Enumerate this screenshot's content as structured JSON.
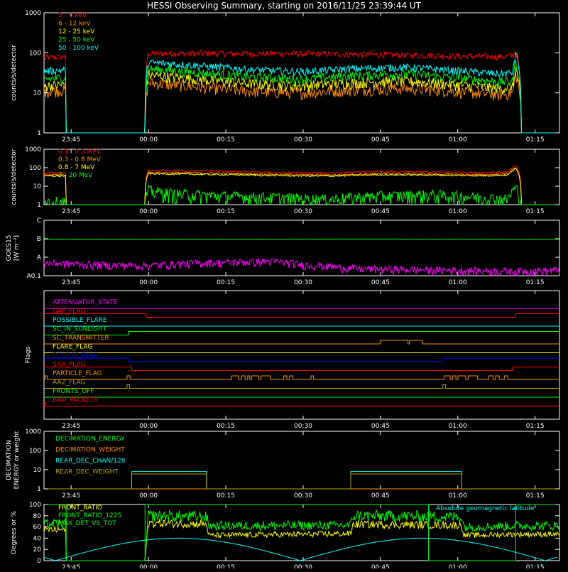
{
  "title": "HESSI Observing Summary, starting on 2016/11/25 23:39:44 UT",
  "colors": {
    "red": "#ff0000",
    "orange": "#ff8c00",
    "yellow": "#ffff00",
    "green": "#00ff00",
    "cyan": "#00ffff",
    "magenta": "#ff00ff",
    "blue": "#0000ff",
    "olive": "#b8a000",
    "white": "#ffffff"
  },
  "time_axis": {
    "start": "23:39:44",
    "end_min": 100,
    "ticks": [
      {
        "min": 5.27,
        "label": "23:45"
      },
      {
        "min": 20.27,
        "label": "00:00"
      },
      {
        "min": 35.27,
        "label": "00:15"
      },
      {
        "min": 50.27,
        "label": "00:30"
      },
      {
        "min": 65.27,
        "label": "00:45"
      },
      {
        "min": 80.27,
        "label": "01:00"
      },
      {
        "min": 95.27,
        "label": "01:15"
      }
    ]
  },
  "chart_data": [
    {
      "id": "hxr",
      "type": "line",
      "ylabel": "counts/s/detector",
      "yscale": "log",
      "ylim": [
        1,
        1000
      ],
      "yticks": [
        {
          "v": 1,
          "label": "1"
        },
        {
          "v": 10,
          "label": "10"
        },
        {
          "v": 100,
          "label": "100"
        },
        {
          "v": 1000,
          "label": "1000"
        }
      ],
      "series": [
        {
          "name": "3 - 6 keV",
          "color": "red",
          "noise": 0.08,
          "x": [
            0,
            4.2,
            4.3,
            19.6,
            20.2,
            30,
            50,
            60,
            70,
            80,
            88,
            91,
            91.5,
            92.6
          ],
          "y": [
            75,
            80,
            1,
            1,
            95,
            97,
            95,
            92,
            88,
            83,
            80,
            85,
            110,
            1
          ]
        },
        {
          "name": "6 - 12 keV",
          "color": "orange",
          "noise": 0.15,
          "x": [
            0,
            4.2,
            4.3,
            19.6,
            20.2,
            30,
            40,
            50,
            60,
            70,
            80,
            88,
            91,
            91.5,
            92.6
          ],
          "y": [
            11,
            12,
            1,
            1,
            18,
            14,
            11,
            10,
            12,
            13,
            11,
            9,
            10,
            30,
            1
          ]
        },
        {
          "name": "12 - 25 keV",
          "color": "yellow",
          "noise": 0.14,
          "x": [
            0,
            4.2,
            4.3,
            19.6,
            20.2,
            30,
            40,
            50,
            60,
            70,
            80,
            88,
            91,
            91.5,
            92.6
          ],
          "y": [
            15,
            16,
            1,
            1,
            28,
            22,
            17,
            15,
            18,
            20,
            16,
            13,
            14,
            40,
            1
          ]
        },
        {
          "name": "25 - 50 keV",
          "color": "green",
          "noise": 0.12,
          "x": [
            0,
            4.2,
            4.3,
            19.6,
            20.2,
            30,
            40,
            50,
            60,
            70,
            80,
            88,
            91,
            91.5,
            92.6
          ],
          "y": [
            22,
            24,
            1,
            1,
            40,
            32,
            25,
            22,
            27,
            30,
            24,
            19,
            20,
            60,
            1
          ]
        },
        {
          "name": "50 - 100 keV",
          "color": "cyan",
          "noise": 0.1,
          "x": [
            0,
            4.2,
            4.3,
            19.6,
            20.2,
            30,
            40,
            50,
            60,
            70,
            80,
            88,
            91,
            91.5,
            92.6
          ],
          "y": [
            35,
            38,
            1,
            1,
            58,
            48,
            38,
            34,
            40,
            44,
            36,
            30,
            32,
            100,
            1
          ]
        }
      ]
    },
    {
      "id": "gamma",
      "type": "line",
      "ylabel": "counts/s/detector",
      "yscale": "log",
      "ylim": [
        1,
        1000
      ],
      "yticks": [
        {
          "v": 1,
          "label": "1"
        },
        {
          "v": 10,
          "label": "10"
        },
        {
          "v": 100,
          "label": "100"
        },
        {
          "v": 1000,
          "label": "1000"
        }
      ],
      "series": [
        {
          "name": "0.1 - 0.3 MeV",
          "color": "red",
          "noise": 0.05,
          "x": [
            0,
            4.2,
            4.3,
            19.6,
            20.2,
            30,
            45,
            55,
            65,
            75,
            85,
            90,
            91.5,
            92.6
          ],
          "y": [
            50,
            52,
            1,
            1,
            70,
            68,
            55,
            52,
            62,
            58,
            55,
            60,
            130,
            1
          ]
        },
        {
          "name": "0.3 - 0.8 MeV",
          "color": "orange",
          "noise": 0.05,
          "x": [
            0,
            4.2,
            4.3,
            19.6,
            20.2,
            30,
            45,
            55,
            65,
            75,
            85,
            90,
            91.5,
            92.6
          ],
          "y": [
            40,
            42,
            1,
            1,
            55,
            52,
            44,
            40,
            48,
            45,
            42,
            46,
            100,
            1
          ]
        },
        {
          "name": "0.8 - 7 MeV",
          "color": "yellow",
          "noise": 0.05,
          "x": [
            0,
            4.2,
            4.3,
            19.6,
            20.2,
            30,
            45,
            55,
            65,
            75,
            85,
            90,
            91.5,
            92.6
          ],
          "y": [
            35,
            36,
            1,
            1,
            48,
            44,
            38,
            35,
            42,
            40,
            37,
            40,
            90,
            1
          ]
        },
        {
          "name": "7 - 20 MeV",
          "color": "green",
          "noise": 0.35,
          "x": [
            0,
            4.2,
            4.3,
            19.6,
            20.2,
            25,
            35,
            45,
            55,
            65,
            75,
            85,
            90,
            91.5,
            92.6
          ],
          "y": [
            1.5,
            1.5,
            1,
            1,
            6,
            4,
            3,
            2.5,
            2,
            3,
            3.5,
            2.5,
            2,
            8,
            1
          ]
        }
      ]
    },
    {
      "id": "goes",
      "type": "line",
      "ylabel": "GOES15",
      "ylabel2": "[W m⁻²]",
      "yscale": "log",
      "ylim": [
        1e-08,
        1e-05
      ],
      "yticks": [
        {
          "v": 1e-08,
          "label": "A0.1"
        },
        {
          "v": 1e-07,
          "label": "A"
        },
        {
          "v": 1e-06,
          "label": "B"
        },
        {
          "v": 1e-05,
          "label": "C"
        }
      ],
      "series": [
        {
          "name": "",
          "color": "green",
          "noise": 0.01,
          "x": [
            0,
            30,
            60,
            100
          ],
          "y": [
            9.5e-07,
            9.3e-07,
            9.6e-07,
            9.4e-07
          ]
        },
        {
          "name": "",
          "color": "magenta",
          "noise": 0.22,
          "x": [
            0,
            10,
            20,
            30,
            45,
            50,
            60,
            70,
            80,
            90,
            100
          ],
          "y": [
            5e-08,
            4e-08,
            3.5e-08,
            5e-08,
            6e-08,
            4e-08,
            2.5e-08,
            2.2e-08,
            2e-08,
            1.8e-08,
            2e-08
          ]
        }
      ]
    },
    {
      "id": "flags",
      "type": "line",
      "ylabel": "Flags",
      "series": [
        {
          "name": "ATTENUATOR_STATE",
          "color": "magenta",
          "levels": [
            [
              0,
              0
            ]
          ]
        },
        {
          "name": "GAP_FLAG",
          "color": "red",
          "levels": [
            [
              0,
              1
            ],
            [
              19.8,
              0
            ],
            [
              91.5,
              1
            ]
          ]
        },
        {
          "name": "POSSIBLE_FLARE",
          "color": "cyan",
          "levels": [
            [
              0,
              0
            ]
          ]
        },
        {
          "name": "SC_IN_SUNLIGHT",
          "color": "green",
          "levels": [
            [
              0,
              0
            ],
            [
              16.4,
              1
            ]
          ]
        },
        {
          "name": "SC_TRANSMITTER",
          "color": "orange",
          "levels": [
            [
              0,
              0
            ],
            [
              65.2,
              1
            ],
            [
              70.6,
              0
            ],
            [
              70.9,
              1
            ],
            [
              73.4,
              0
            ]
          ]
        },
        {
          "name": "FLARE_FLAG",
          "color": "yellow",
          "levels": [
            [
              0,
              0
            ]
          ]
        },
        {
          "name": "ECLIPSE_FLAG",
          "color": "blue",
          "levels": [
            [
              0,
              1
            ],
            [
              16.3,
              0
            ],
            [
              77.6,
              1
            ]
          ]
        },
        {
          "name": "SAA_FLAG",
          "color": "red",
          "levels": [
            [
              0,
              1
            ],
            [
              17,
              0
            ],
            [
              90.9,
              1
            ]
          ]
        },
        {
          "name": "PARTICLE_FLAG",
          "color": "orange",
          "levels": [
            [
              0,
              0
            ],
            [
              0.2,
              1
            ],
            [
              0.6,
              0
            ],
            [
              16.1,
              1
            ],
            [
              16.7,
              0
            ],
            [
              36.4,
              1
            ],
            [
              37.7,
              0
            ],
            [
              38.3,
              1
            ],
            [
              39,
              0
            ],
            [
              39.5,
              1
            ],
            [
              39.9,
              0
            ],
            [
              40.3,
              1
            ],
            [
              41.6,
              0
            ],
            [
              42.1,
              1
            ],
            [
              43.9,
              0
            ],
            [
              46.5,
              1
            ],
            [
              47.1,
              0
            ],
            [
              47.6,
              1
            ],
            [
              48.3,
              0
            ],
            [
              51.8,
              1
            ],
            [
              52.3,
              0
            ],
            [
              77.6,
              1
            ],
            [
              78.8,
              0
            ],
            [
              79.3,
              1
            ],
            [
              79.9,
              0
            ],
            [
              80.3,
              1
            ],
            [
              81.8,
              0
            ],
            [
              82.3,
              1
            ],
            [
              84.1,
              0
            ],
            [
              86.3,
              1
            ],
            [
              87.1,
              0
            ],
            [
              87.6,
              1
            ],
            [
              88.3,
              0
            ],
            [
              89.3,
              1
            ],
            [
              90,
              0
            ]
          ]
        },
        {
          "name": "AAZ_FLAG",
          "color": "olive",
          "levels": [
            [
              0,
              0
            ],
            [
              16.1,
              1
            ],
            [
              16.6,
              0
            ],
            [
              77.4,
              1
            ],
            [
              77.9,
              0
            ]
          ]
        },
        {
          "name": "FRONTS_OFF",
          "color": "green",
          "levels": [
            [
              0,
              0
            ]
          ]
        },
        {
          "name": "BAD_PACKETS",
          "color": "red",
          "levels": [
            [
              0,
              0
            ],
            [
              0.1,
              1
            ],
            [
              0.3,
              0
            ]
          ]
        }
      ]
    },
    {
      "id": "decim",
      "type": "line",
      "ylabel": "DECIMATION",
      "ylabel2": "ENERGY or weight",
      "yscale": "log",
      "ylim": [
        1,
        1000
      ],
      "yticks": [
        {
          "v": 1,
          "label": "1"
        },
        {
          "v": 10,
          "label": "10"
        },
        {
          "v": 100,
          "label": "100"
        },
        {
          "v": 1000,
          "label": "1000"
        }
      ],
      "series": [
        {
          "name": "DECIMATION_ENERGY",
          "color": "green",
          "noise": 0,
          "x": [
            0,
            100
          ],
          "y": [
            1,
            1
          ]
        },
        {
          "name": "DECIMATION_WEIGHT",
          "color": "orange",
          "noise": 0,
          "x": [
            0,
            100
          ],
          "y": [
            1,
            1
          ]
        },
        {
          "name": "REAR_DEC_CHAN/128",
          "color": "cyan",
          "noise": 0,
          "step": true,
          "x": [
            0,
            17,
            17,
            31.5,
            31.5,
            59.5,
            59.5,
            81,
            81,
            100
          ],
          "y": [
            1,
            1,
            8,
            8,
            1,
            1,
            8,
            8,
            1,
            1
          ]
        },
        {
          "name": "REAR_DEC_WEIGHT",
          "color": "olive",
          "noise": 0,
          "step": true,
          "x": [
            0,
            17,
            17,
            31.5,
            31.5,
            59.5,
            59.5,
            81,
            81,
            100
          ],
          "y": [
            1,
            1,
            6,
            6,
            1,
            1,
            6,
            6,
            1,
            1
          ]
        }
      ]
    },
    {
      "id": "geo",
      "type": "line",
      "ylabel": "Degrees or %",
      "ylim": [
        0,
        100
      ],
      "yticks": [
        {
          "v": 0,
          "label": "0"
        },
        {
          "v": 20,
          "label": "20"
        },
        {
          "v": 40,
          "label": "40"
        },
        {
          "v": 60,
          "label": "60"
        },
        {
          "v": 80,
          "label": "80"
        },
        {
          "v": 100,
          "label": "100"
        }
      ],
      "annotation": "Absolute geomagnetic latitude",
      "series": [
        {
          "name": "FRONT_RATIO",
          "color": "yellow",
          "noise": 0.05,
          "x": [
            0,
            4.2,
            4.3,
            19.6,
            20.2,
            31.5,
            32,
            59.5,
            60,
            81,
            81.5,
            91.5
          ],
          "y": [
            55,
            55,
            0,
            0,
            67,
            65,
            45,
            48,
            65,
            63,
            45,
            47
          ]
        },
        {
          "name": "FRONT_RATIO_1225",
          "color": "green",
          "noise": 0.06,
          "x": [
            0,
            4.2,
            4.3,
            19.6,
            20.2,
            31.5,
            32,
            59.5,
            60,
            81,
            81.5,
            91.5
          ],
          "y": [
            65,
            66,
            0,
            0,
            80,
            78,
            62,
            63,
            80,
            78,
            60,
            62
          ]
        },
        {
          "name": "MAX_DET_VS_TOT",
          "color": "green",
          "noise": 0,
          "step": true,
          "x": [
            0,
            4.3,
            4.3,
            19.6,
            19.6,
            59.5,
            59.5,
            74.6,
            74.6,
            91.5,
            91.5,
            100
          ],
          "y": [
            100,
            100,
            0,
            0,
            100,
            100,
            100,
            100,
            0,
            0,
            100,
            100
          ]
        },
        {
          "name": "",
          "color": "cyan",
          "noise": 0,
          "curve": "geolat"
        }
      ]
    }
  ]
}
